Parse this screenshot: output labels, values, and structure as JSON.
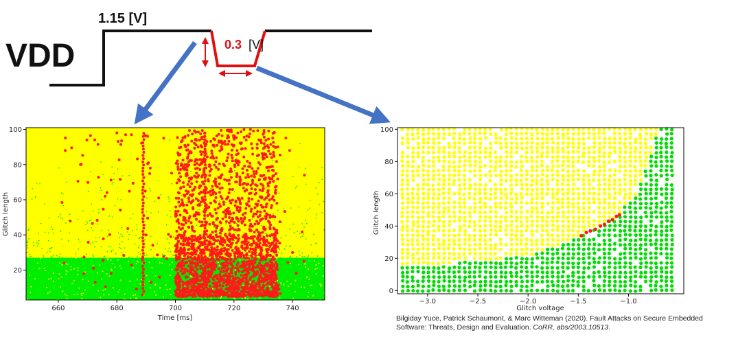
{
  "vdd_diagram": {
    "vdd_label": "VDD",
    "nominal_voltage_label": "1.15 [V]",
    "glitch_voltage_value": "0.3",
    "glitch_voltage_unit": "[V]",
    "glitch_color": "#e01010",
    "arrow_color": "#4472c4"
  },
  "citation": {
    "text_a": "Bilgiday Yuce, Patrick Schaumont, & Marc Witteman (2020). Fault Attacks on Secure Embedded Software: Threats, Design and Evaluation. ",
    "venue": "CoRR, abs/2003.10513",
    "end": "."
  },
  "chart_data": [
    {
      "type": "scatter",
      "title": "",
      "xlabel": "Time [ms]",
      "ylabel": "Glitch length",
      "xlim": [
        649,
        751
      ],
      "ylim": [
        3,
        101
      ],
      "xticks": [
        660,
        680,
        700,
        720,
        740
      ],
      "yticks": [
        20,
        40,
        60,
        80,
        100
      ],
      "grid": false,
      "legend": "none",
      "colors": {
        "no_effect": "#ffff00",
        "normal": "#00ee00",
        "fault": "#ff1a1a"
      },
      "regions": {
        "normal_below_glitch_length": 27,
        "fault_dense_x_range": [
          700,
          735
        ],
        "fault_vertical_lines_x": [
          689,
          710
        ],
        "sampled_points": [
          [
            680,
            98
          ],
          [
            683,
            97
          ],
          [
            685,
            97
          ],
          [
            676,
            62
          ],
          [
            672,
            21
          ],
          [
            690,
            40
          ],
          [
            702,
            93
          ],
          [
            716,
            92
          ],
          [
            728,
            85
          ],
          [
            733,
            72
          ],
          [
            719,
            48
          ],
          [
            729,
            41
          ],
          [
            740,
            30
          ],
          [
            662,
            24
          ],
          [
            696,
            95
          ],
          [
            706,
            63
          ],
          [
            722,
            73
          ],
          [
            739,
            88
          ]
        ]
      }
    },
    {
      "type": "scatter",
      "title": "",
      "xlabel": "Glitch voltage",
      "ylabel": "Glitch length",
      "xlim": [
        -3.3,
        -0.45
      ],
      "ylim": [
        -2,
        101
      ],
      "xticks": [
        -3.0,
        -2.5,
        -2.0,
        -1.5,
        -1.0
      ],
      "yticks": [
        0,
        20,
        40,
        60,
        80,
        100
      ],
      "grid": false,
      "legend": "none",
      "colors": {
        "no_effect": "#ffff00",
        "normal": "#00dd00",
        "fault": "#ff1a1a"
      },
      "regions": {
        "boundary": [
          [
            -3.25,
            15
          ],
          [
            -2.5,
            18
          ],
          [
            -2.0,
            22
          ],
          [
            -1.7,
            28
          ],
          [
            -1.5,
            33
          ],
          [
            -1.3,
            39
          ],
          [
            -1.1,
            47
          ],
          [
            -0.9,
            62
          ],
          [
            -0.8,
            80
          ],
          [
            -0.7,
            100
          ]
        ],
        "fault_points": [
          [
            -1.47,
            34
          ],
          [
            -1.42,
            36
          ],
          [
            -1.38,
            37
          ],
          [
            -1.33,
            38
          ],
          [
            -1.28,
            40
          ],
          [
            -1.24,
            41
          ],
          [
            -1.2,
            43
          ],
          [
            -1.16,
            44
          ],
          [
            -1.12,
            46
          ],
          [
            -1.09,
            47
          ]
        ]
      }
    }
  ]
}
